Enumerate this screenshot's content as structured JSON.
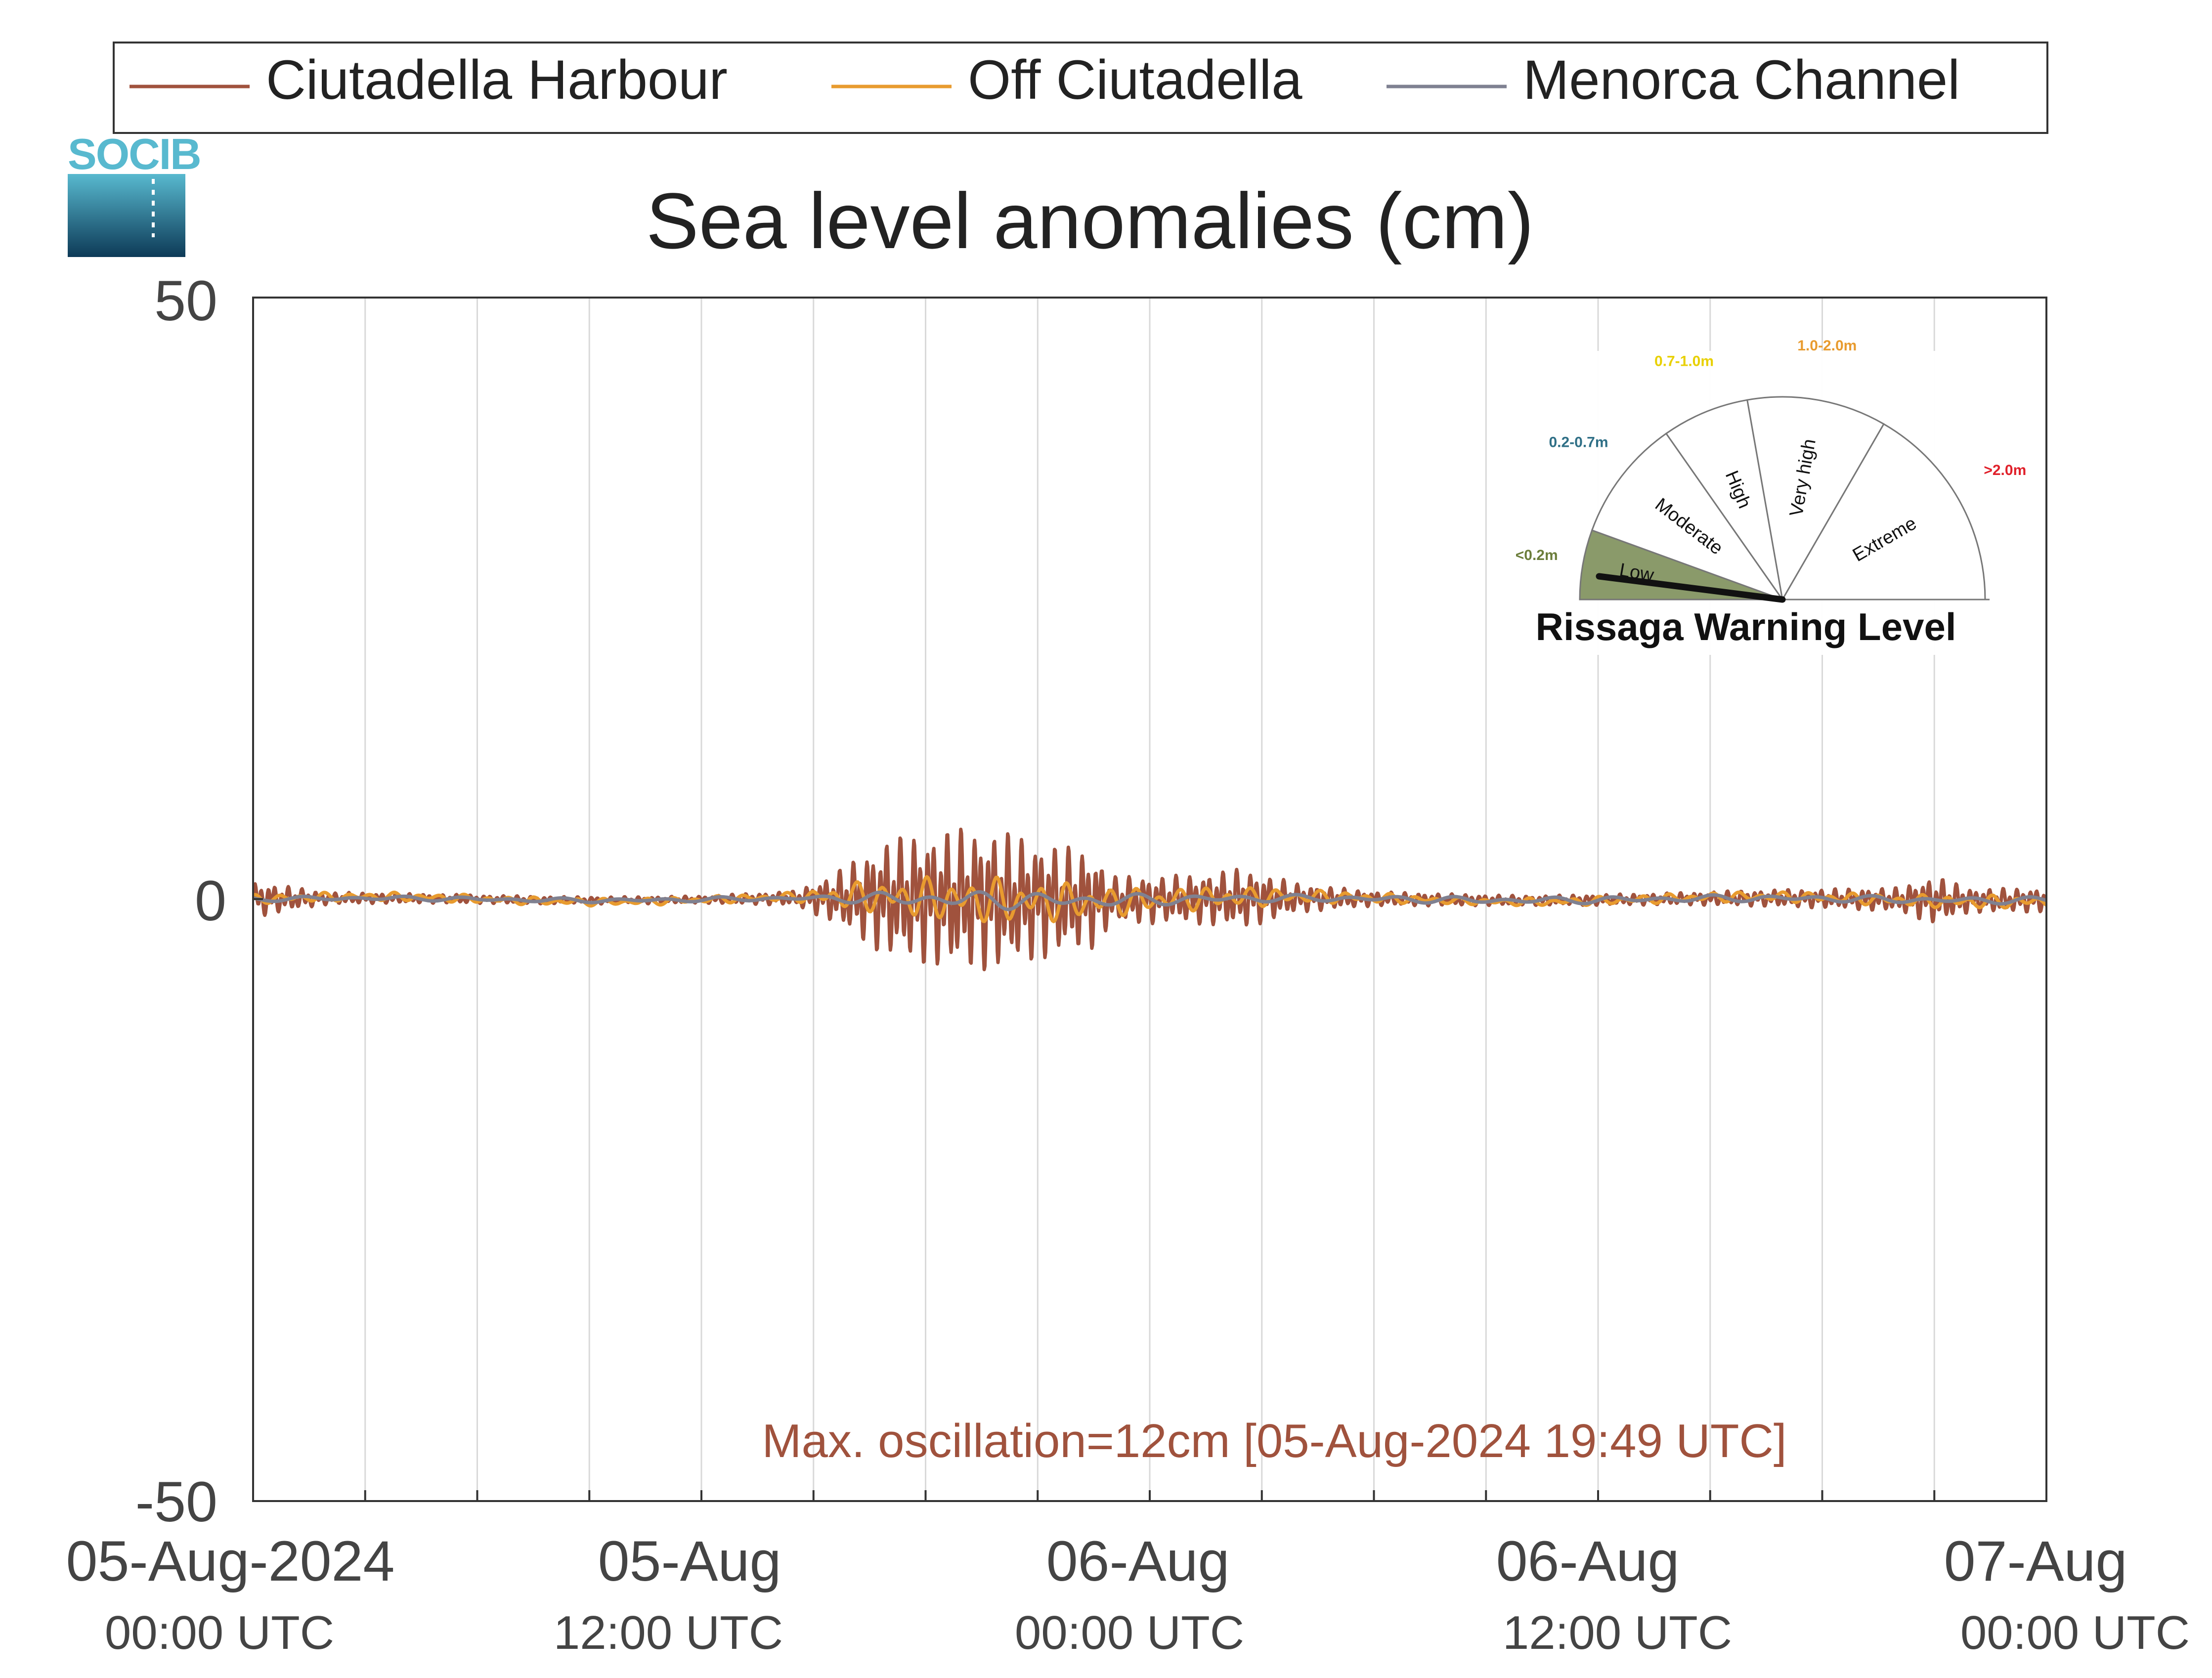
{
  "chart_data": {
    "type": "line",
    "title": "Sea level anomalies (cm)",
    "ylim": [
      -50,
      50
    ],
    "yticks": [
      "50",
      "0",
      "-50"
    ],
    "x_range_hours": [
      0,
      48
    ],
    "x_ticks": [
      {
        "hours": 0,
        "date": "05-Aug-2024",
        "time": "00:00 UTC"
      },
      {
        "hours": 12,
        "date": "05-Aug",
        "time": "12:00 UTC"
      },
      {
        "hours": 24,
        "date": "06-Aug",
        "time": "00:00 UTC"
      },
      {
        "hours": 36,
        "date": "06-Aug",
        "time": "12:00 UTC"
      },
      {
        "hours": 48,
        "date": "07-Aug",
        "time": "00:00 UTC"
      }
    ],
    "grid": true,
    "legend_position": "top",
    "series": [
      {
        "name": "Ciutadella Harbour",
        "color": "#a0523d",
        "envelope": [
          [
            0,
            1.5
          ],
          [
            1,
            1
          ],
          [
            2,
            0.5
          ],
          [
            4,
            0.4
          ],
          [
            8,
            0.3
          ],
          [
            12,
            0.3
          ],
          [
            14.5,
            0.6
          ],
          [
            15.5,
            2
          ],
          [
            17,
            5
          ],
          [
            19,
            6
          ],
          [
            20,
            5.8
          ],
          [
            21,
            5
          ],
          [
            22.5,
            4
          ],
          [
            23,
            2
          ],
          [
            25,
            2
          ],
          [
            26.5,
            2.5
          ],
          [
            28,
            1.2
          ],
          [
            30,
            0.6
          ],
          [
            34,
            0.4
          ],
          [
            38,
            0.5
          ],
          [
            42,
            0.8
          ],
          [
            44,
            1
          ],
          [
            44.5,
            1.5
          ],
          [
            45,
            2
          ],
          [
            46,
            1
          ],
          [
            47,
            1
          ],
          [
            48,
            1
          ]
        ]
      },
      {
        "name": "Off Ciutadella",
        "color": "#e89b2f",
        "envelope": [
          [
            0,
            0.4
          ],
          [
            12,
            0.3
          ],
          [
            14.5,
            0.4
          ],
          [
            16,
            1.2
          ],
          [
            18,
            1.8
          ],
          [
            20,
            2
          ],
          [
            22,
            1.6
          ],
          [
            24,
            1
          ],
          [
            26,
            1
          ],
          [
            28,
            0.6
          ],
          [
            32,
            0.3
          ],
          [
            44,
            0.5
          ],
          [
            46,
            0.6
          ],
          [
            48,
            0.5
          ]
        ]
      },
      {
        "name": "Menorca Channel",
        "color": "#7f8191",
        "envelope": [
          [
            0,
            0.2
          ],
          [
            15,
            0.2
          ],
          [
            17,
            0.6
          ],
          [
            20,
            0.8
          ],
          [
            24,
            0.5
          ],
          [
            28,
            0.3
          ],
          [
            48,
            0.3
          ]
        ]
      }
    ],
    "annotation": "Max. oscillation=12cm [05-Aug-2024 19:49 UTC]",
    "annotation_color": "#a0523d"
  },
  "logo": {
    "text": "SOCIB"
  },
  "gauge": {
    "title": "Rissaga Warning Level",
    "needle_value": "Low",
    "levels": [
      {
        "label": "Low",
        "range": "<0.2m",
        "range_color": "#6b7d3a",
        "fill": "#8a9a6a"
      },
      {
        "label": "Moderate",
        "range": "0.2-0.7m",
        "range_color": "#2f6f86",
        "fill": "#ffffff"
      },
      {
        "label": "High",
        "range": "0.7-1.0m",
        "range_color": "#e8d000",
        "fill": "#ffffff"
      },
      {
        "label": "Very high",
        "range": "1.0-2.0m",
        "range_color": "#e89b2f",
        "fill": "#ffffff"
      },
      {
        "label": "Extreme",
        "range": ">2.0m",
        "range_color": "#e0202a",
        "fill": "#ffffff"
      }
    ]
  }
}
